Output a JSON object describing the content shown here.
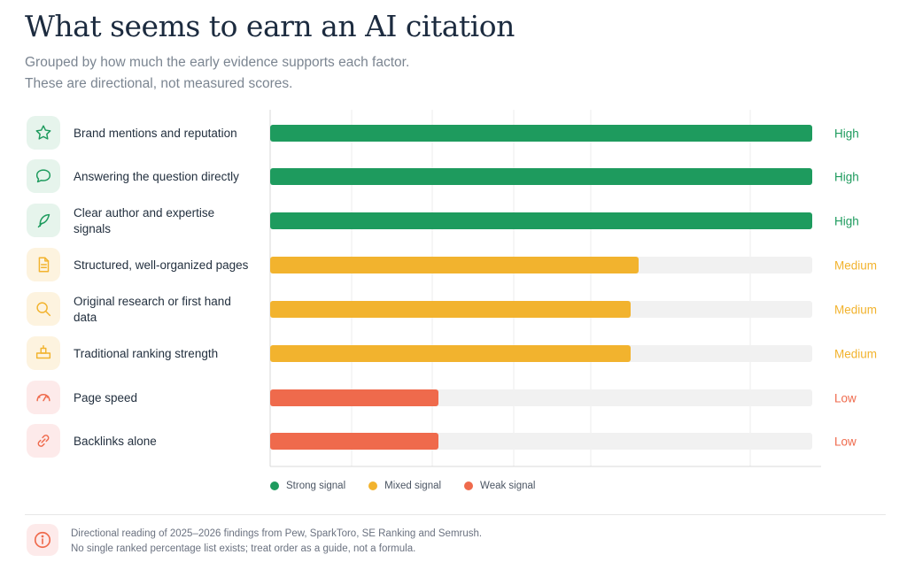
{
  "header": {
    "title": "What seems to earn an AI citation",
    "subtitle_line1": "Grouped by how much the early evidence supports each factor.",
    "subtitle_line2": "These are directional, not measured scores."
  },
  "colors": {
    "strong": "#1e9b5e",
    "mixed": "#f2b32e",
    "weak": "#ef6a4c",
    "track": "#f1f1f1"
  },
  "chart_data": {
    "type": "bar",
    "orientation": "horizontal",
    "categories": [
      "Brand mentions and reputation",
      "Answering the question directly",
      "Clear author and expertise signals",
      "Structured, well-organized pages",
      "Original research or first hand data",
      "Traditional ranking strength",
      "Page speed",
      "Backlinks alone"
    ],
    "values": [
      1.0,
      1.0,
      1.0,
      0.68,
      0.665,
      0.665,
      0.31,
      0.31
    ],
    "levels": [
      "High",
      "High",
      "High",
      "Medium",
      "Medium",
      "Medium",
      "Low",
      "Low"
    ],
    "signal": [
      "strong",
      "strong",
      "strong",
      "mixed",
      "mixed",
      "mixed",
      "weak",
      "weak"
    ],
    "icons": [
      "star-icon",
      "speech-bubble-icon",
      "feather-icon",
      "document-icon",
      "magnifier-icon",
      "podium-icon",
      "speedometer-icon",
      "link-icon"
    ],
    "xlim": [
      0,
      1
    ],
    "grid": true,
    "legend_position": "bottom",
    "legend": [
      {
        "key": "strong",
        "label": "Strong signal"
      },
      {
        "key": "mixed",
        "label": "Mixed signal"
      },
      {
        "key": "weak",
        "label": "Weak signal"
      }
    ]
  },
  "footer": {
    "note_line1": "Directional reading of 2025–2026 findings from Pew, SparkToro, SE Ranking and Semrush.",
    "note_line2": "No single ranked percentage list exists; treat order as a guide, not a formula.",
    "icon": "info-icon"
  }
}
